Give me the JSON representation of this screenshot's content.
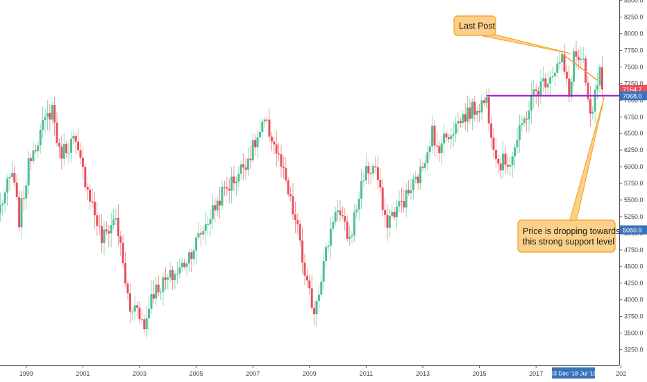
{
  "chart_data": {
    "type": "candlestick",
    "interval": "monthly",
    "ylim": [
      3150,
      8550
    ],
    "x_range": [
      "1998-01",
      "2020-01"
    ],
    "y_ticks": [
      "3250.0",
      "3500.0",
      "3750.0",
      "4000.0",
      "4250.0",
      "4500.0",
      "4750.0",
      "5000.0",
      "5250.0",
      "5500.0",
      "5750.0",
      "6000.0",
      "6250.0",
      "6500.0",
      "6750.0",
      "7000.0",
      "7250.0",
      "7500.0",
      "7750.0",
      "8000.0",
      "8250.0",
      "8500.0"
    ],
    "x_ticks": [
      {
        "label": "1999",
        "date": "1999-01"
      },
      {
        "label": "2001",
        "date": "2001-01"
      },
      {
        "label": "2003",
        "date": "2003-01"
      },
      {
        "label": "2005",
        "date": "2005-01"
      },
      {
        "label": "2007",
        "date": "2007-01"
      },
      {
        "label": "2009",
        "date": "2009-01"
      },
      {
        "label": "2011",
        "date": "2011-01"
      },
      {
        "label": "2013",
        "date": "2013-01"
      },
      {
        "label": "2015",
        "date": "2015-01"
      },
      {
        "label": "2017",
        "date": "2017-01"
      },
      {
        "label": "202",
        "date": "2020-01"
      }
    ],
    "anchors": [
      [
        "1998-01",
        5300
      ],
      [
        "1998-07",
        5900
      ],
      [
        "1998-10",
        5200
      ],
      [
        "1999-03",
        6200
      ],
      [
        "1999-12",
        6900
      ],
      [
        "2000-03",
        6200
      ],
      [
        "2000-09",
        6400
      ],
      [
        "2001-03",
        5700
      ],
      [
        "2001-09",
        4900
      ],
      [
        "2002-03",
        5250
      ],
      [
        "2002-09",
        3800
      ],
      [
        "2002-12",
        3950
      ],
      [
        "2003-03",
        3550
      ],
      [
        "2003-06",
        4100
      ],
      [
        "2004-06",
        4450
      ],
      [
        "2004-12",
        4800
      ],
      [
        "2005-12",
        5600
      ],
      [
        "2006-06",
        5850
      ],
      [
        "2006-12",
        6200
      ],
      [
        "2007-06",
        6650
      ],
      [
        "2007-09",
        6450
      ],
      [
        "2008-01",
        6000
      ],
      [
        "2008-09",
        4900
      ],
      [
        "2008-11",
        4300
      ],
      [
        "2009-03",
        3850
      ],
      [
        "2009-12",
        5400
      ],
      [
        "2010-06",
        4900
      ],
      [
        "2010-12",
        5900
      ],
      [
        "2011-05",
        6000
      ],
      [
        "2011-09",
        5150
      ],
      [
        "2012-06",
        5550
      ],
      [
        "2012-12",
        5900
      ],
      [
        "2013-05",
        6550
      ],
      [
        "2013-06",
        6250
      ],
      [
        "2014-06",
        6750
      ],
      [
        "2015-04",
        7000
      ],
      [
        "2015-06",
        6550
      ],
      [
        "2015-09",
        6050
      ],
      [
        "2016-02",
        6100
      ],
      [
        "2016-06",
        6500
      ],
      [
        "2016-12",
        7100
      ],
      [
        "2017-12",
        7600
      ],
      [
        "2018-03",
        7050
      ],
      [
        "2018-05",
        7700
      ],
      [
        "2018-09",
        7500
      ],
      [
        "2018-12",
        6700
      ],
      [
        "2019-04",
        7400
      ],
      [
        "2019-05",
        7164.7
      ]
    ],
    "last_close": "7164.7",
    "axis_badges": [
      {
        "label": "7164.7",
        "value": 7164.7,
        "color": "#e8505b"
      },
      {
        "label": "7068.0",
        "value": 7068.0,
        "color": "#3b73b9"
      },
      {
        "label": "5050.9",
        "value": 5050.9,
        "color": "#3b73b9"
      }
    ],
    "date_badge": "03 Dec '18  Jul '19",
    "support_level": 7068,
    "support_from": "2015-04",
    "trendline": {
      "from": [
        "2017-12",
        7700
      ],
      "to": [
        "2019-03",
        7300
      ]
    },
    "annotations": [
      {
        "name": "last-post",
        "lines": [
          "Last Post"
        ],
        "points_to": [
          "2018-04",
          7700
        ]
      },
      {
        "name": "support-note",
        "lines": [
          "Price is dropping towards",
          "this strong support level"
        ],
        "points_to": [
          "2019-06",
          7068
        ]
      }
    ],
    "colors": {
      "up": "#4fbf8f",
      "down": "#e8505b",
      "support": "#9e1fd8",
      "trendline": "#f79b2e",
      "callout_fill": "#fcd08a",
      "callout_border": "#f59e1b"
    }
  }
}
